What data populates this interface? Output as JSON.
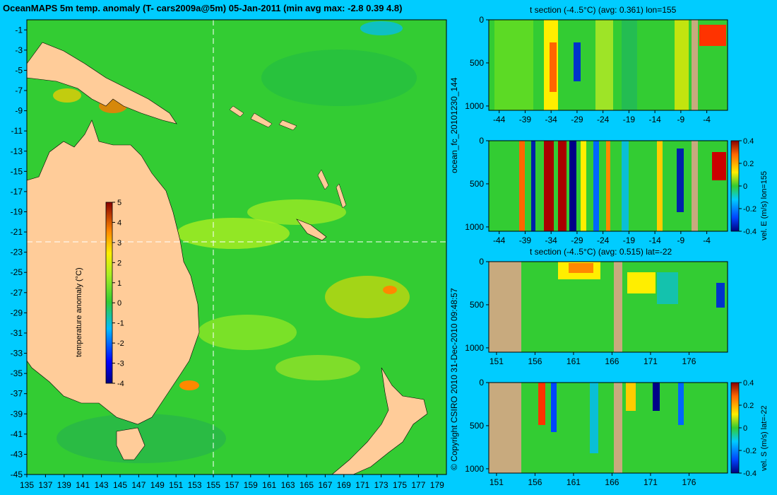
{
  "colors": {
    "background": "#00ccff",
    "land": "#ffcc99",
    "mask": "#c8aa7e",
    "field": "#33cc33"
  },
  "chart_data": [
    {
      "type": "heatmap",
      "title": "OceanMAPS 5m temp. anomaly (T- cars2009a@5m) 05-Jan-2011 (min avg max: -2.8 0.39 4.8)",
      "x_ticks": [
        "135",
        "137",
        "139",
        "141",
        "143",
        "145",
        "147",
        "149",
        "151",
        "153",
        "155",
        "157",
        "159",
        "161",
        "163",
        "165",
        "167",
        "169",
        "171",
        "173",
        "175",
        "177",
        "179"
      ],
      "y_ticks": [
        "-1",
        "-3",
        "-5",
        "-7",
        "-9",
        "-11",
        "-13",
        "-15",
        "-17",
        "-19",
        "-21",
        "-23",
        "-25",
        "-27",
        "-29",
        "-31",
        "-33",
        "-35",
        "-37",
        "-39",
        "-41",
        "-43",
        "-45"
      ],
      "xlim": [
        135,
        180
      ],
      "ylim": [
        -45,
        0
      ],
      "section_lines": {
        "lon": 155,
        "lat": -22
      },
      "colorbar": {
        "label": "temperature anomaly (°C)",
        "range": [
          -4,
          5
        ],
        "ticks": [
          "5",
          "4",
          "3",
          "2",
          "1",
          "0",
          "-1",
          "-2",
          "-3",
          "-4"
        ]
      }
    },
    {
      "type": "heatmap",
      "title": "t section (-4..5°C) (avg: 0.361) lon=155",
      "x_ticks": [
        "-44",
        "-39",
        "-34",
        "-29",
        "-24",
        "-19",
        "-14",
        "-9",
        "-4"
      ],
      "y_ticks": [
        "0",
        "500",
        "1000"
      ],
      "xlim": [
        -46,
        0
      ],
      "ylim": [
        1050,
        0
      ]
    },
    {
      "type": "heatmap",
      "title": "",
      "x_ticks": [
        "-44",
        "-39",
        "-34",
        "-29",
        "-24",
        "-19",
        "-14",
        "-9",
        "-4"
      ],
      "y_ticks": [
        "0",
        "500",
        "1000"
      ],
      "xlim": [
        -46,
        0
      ],
      "ylim": [
        1050,
        0
      ],
      "colorbar": {
        "label": "vel. E (m/s) lon=155",
        "range": [
          -0.4,
          0.4
        ],
        "ticks": [
          "0.4",
          "0.2",
          "0",
          "-0.2",
          "-0.4"
        ]
      }
    },
    {
      "type": "heatmap",
      "title": "t section (-4..5°C) (avg: 0.515) lat=-22",
      "x_ticks": [
        "151",
        "156",
        "161",
        "166",
        "171",
        "176"
      ],
      "y_ticks": [
        "0",
        "500",
        "1000"
      ],
      "xlim": [
        150,
        181
      ],
      "ylim": [
        1050,
        0
      ]
    },
    {
      "type": "heatmap",
      "title": "",
      "x_ticks": [
        "151",
        "156",
        "161",
        "166",
        "171",
        "176"
      ],
      "y_ticks": [
        "0",
        "500",
        "1000"
      ],
      "xlim": [
        150,
        181
      ],
      "ylim": [
        1050,
        0
      ],
      "colorbar": {
        "label": "vel. S (m/s) lat=-22",
        "range": [
          -0.4,
          0.4
        ],
        "ticks": [
          "0.4",
          "0.2",
          "0",
          "-0.2",
          "-0.4"
        ]
      }
    }
  ],
  "side_labels": {
    "run": "ocean_fc_20101230_144",
    "copyright": "© Copyright CSIRO 2010   31-Dec-2010 09:48:57"
  }
}
